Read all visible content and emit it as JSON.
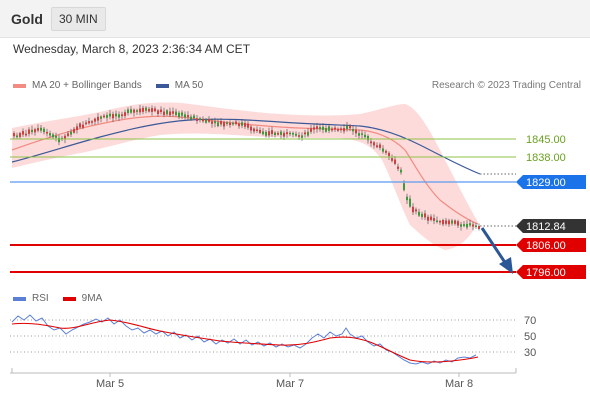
{
  "header": {
    "instrument": "Gold",
    "timeframe": "30 MIN"
  },
  "datetime": "Wednesday, March 8, 2023 2:36:34 AM CET",
  "legend": {
    "bollinger": {
      "label": "MA 20 + Bollinger Bands",
      "color": "#f28b82"
    },
    "ma50": {
      "label": "MA 50",
      "color": "#3b5998"
    }
  },
  "research": "Research © 2023 Trading Central",
  "levels": [
    {
      "label": "1845.00",
      "kind": "resistance-light",
      "color": "#8fc24a"
    },
    {
      "label": "1838.00",
      "kind": "resistance-light",
      "color": "#8fc24a"
    },
    {
      "label": "1829.00",
      "kind": "pivot",
      "color": "#1a73e8"
    },
    {
      "label": "1806.00",
      "kind": "support",
      "color": "#e00000"
    },
    {
      "label": "1796.00",
      "kind": "support",
      "color": "#e00000"
    }
  ],
  "current_price": {
    "label": "1812.84",
    "color": "#333333"
  },
  "rsi_legend": {
    "rsi": {
      "label": "RSI",
      "color": "#5b7fd6"
    },
    "ma": {
      "label": "9MA",
      "color": "#e00000"
    }
  },
  "rsi_levels": [
    "70",
    "50",
    "30"
  ],
  "x_axis": [
    "Mar 5",
    "Mar 7",
    "Mar 8"
  ]
}
